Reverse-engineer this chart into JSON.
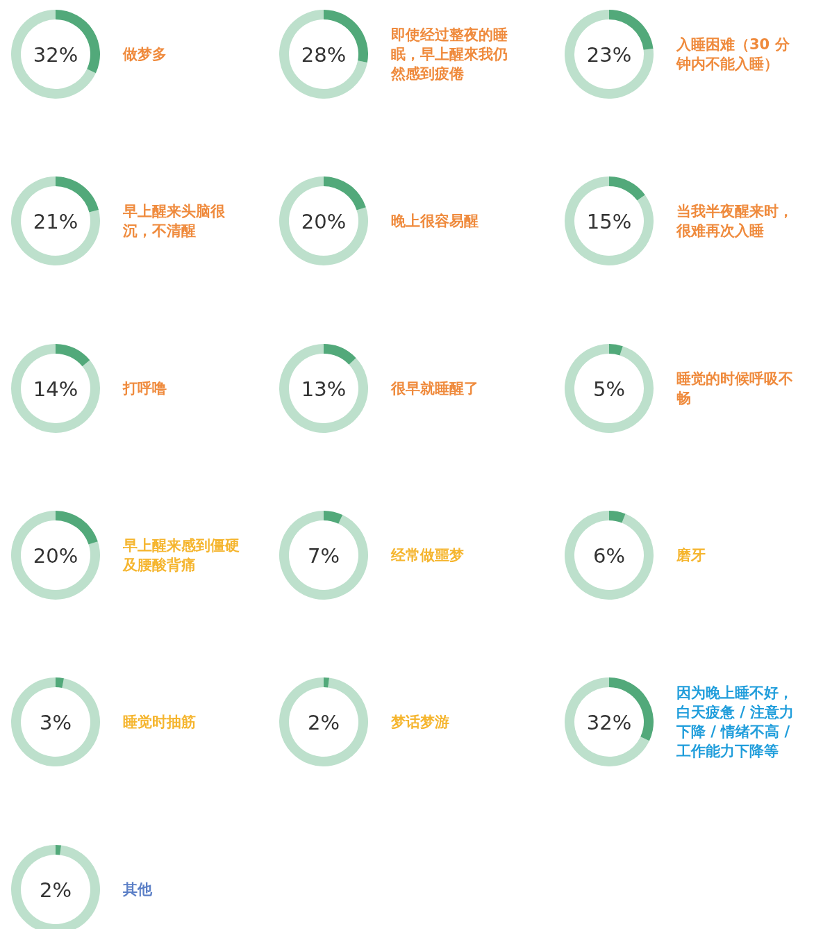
{
  "chart_data": [
    {
      "type": "donut",
      "title": "做梦多",
      "categories": [
        null,
        null
      ],
      "values": [
        32,
        68
      ],
      "colors": [
        "#52a97a",
        "#bde0cc"
      ],
      "annotations": [
        "32%"
      ]
    },
    {
      "type": "donut",
      "title": "即使经过整夜的睡眠，早上醒來我仍然感到疲倦",
      "categories": [
        null,
        null
      ],
      "values": [
        28,
        72
      ],
      "colors": [
        "#52a97a",
        "#bde0cc"
      ],
      "annotations": [
        "28%"
      ]
    },
    {
      "type": "donut",
      "title": "入睡困难（30 分钟内不能入睡）",
      "categories": [
        null,
        null
      ],
      "values": [
        23,
        77
      ],
      "colors": [
        "#52a97a",
        "#bde0cc"
      ],
      "annotations": [
        "23%"
      ]
    },
    {
      "type": "donut",
      "title": "早上醒来头脑很沉，不清醒",
      "categories": [
        null,
        null
      ],
      "values": [
        21,
        79
      ],
      "colors": [
        "#52a97a",
        "#bde0cc"
      ],
      "annotations": [
        "21%"
      ]
    },
    {
      "type": "donut",
      "title": "晚上很容易醒",
      "categories": [
        null,
        null
      ],
      "values": [
        20,
        80
      ],
      "colors": [
        "#52a97a",
        "#bde0cc"
      ],
      "annotations": [
        "20%"
      ]
    },
    {
      "type": "donut",
      "title": "当我半夜醒来时，很难再次入睡",
      "categories": [
        null,
        null
      ],
      "values": [
        15,
        85
      ],
      "colors": [
        "#52a97a",
        "#bde0cc"
      ],
      "annotations": [
        "15%"
      ]
    },
    {
      "type": "donut",
      "title": "打呼噜",
      "categories": [
        null,
        null
      ],
      "values": [
        14,
        86
      ],
      "colors": [
        "#52a97a",
        "#bde0cc"
      ],
      "annotations": [
        "14%"
      ]
    },
    {
      "type": "donut",
      "title": "很早就睡醒了",
      "categories": [
        null,
        null
      ],
      "values": [
        13,
        87
      ],
      "colors": [
        "#52a97a",
        "#bde0cc"
      ],
      "annotations": [
        "13%"
      ]
    },
    {
      "type": "donut",
      "title": "睡觉的时候呼吸不畅",
      "categories": [
        null,
        null
      ],
      "values": [
        5,
        95
      ],
      "colors": [
        "#52a97a",
        "#bde0cc"
      ],
      "annotations": [
        "5%"
      ]
    },
    {
      "type": "donut",
      "title": "早上醒来感到僵硬及腰酸背痛",
      "categories": [
        null,
        null
      ],
      "values": [
        20,
        80
      ],
      "colors": [
        "#52a97a",
        "#bde0cc"
      ],
      "annotations": [
        "20%"
      ]
    },
    {
      "type": "donut",
      "title": "经常做噩梦",
      "categories": [
        null,
        null
      ],
      "values": [
        7,
        93
      ],
      "colors": [
        "#52a97a",
        "#bde0cc"
      ],
      "annotations": [
        "7%"
      ]
    },
    {
      "type": "donut",
      "title": "磨牙",
      "categories": [
        null,
        null
      ],
      "values": [
        6,
        94
      ],
      "colors": [
        "#52a97a",
        "#bde0cc"
      ],
      "annotations": [
        "6%"
      ]
    },
    {
      "type": "donut",
      "title": "睡觉时抽筋",
      "categories": [
        null,
        null
      ],
      "values": [
        3,
        97
      ],
      "colors": [
        "#52a97a",
        "#bde0cc"
      ],
      "annotations": [
        "3%"
      ]
    },
    {
      "type": "donut",
      "title": "梦话梦游",
      "categories": [
        null,
        null
      ],
      "values": [
        2,
        98
      ],
      "colors": [
        "#52a97a",
        "#bde0cc"
      ],
      "annotations": [
        "2%"
      ]
    },
    {
      "type": "donut",
      "title": "因为晚上睡不好，白天疲惫 / 注意力下降 / 情绪不高 / 工作能力下降等",
      "categories": [
        null,
        null
      ],
      "values": [
        32,
        68
      ],
      "colors": [
        "#52a97a",
        "#bde0cc"
      ],
      "annotations": [
        "32%"
      ]
    },
    {
      "type": "donut",
      "title": "其他",
      "categories": [
        null,
        null
      ],
      "values": [
        2,
        98
      ],
      "colors": [
        "#52a97a",
        "#bde0cc"
      ],
      "annotations": [
        "2%"
      ]
    }
  ]
}
